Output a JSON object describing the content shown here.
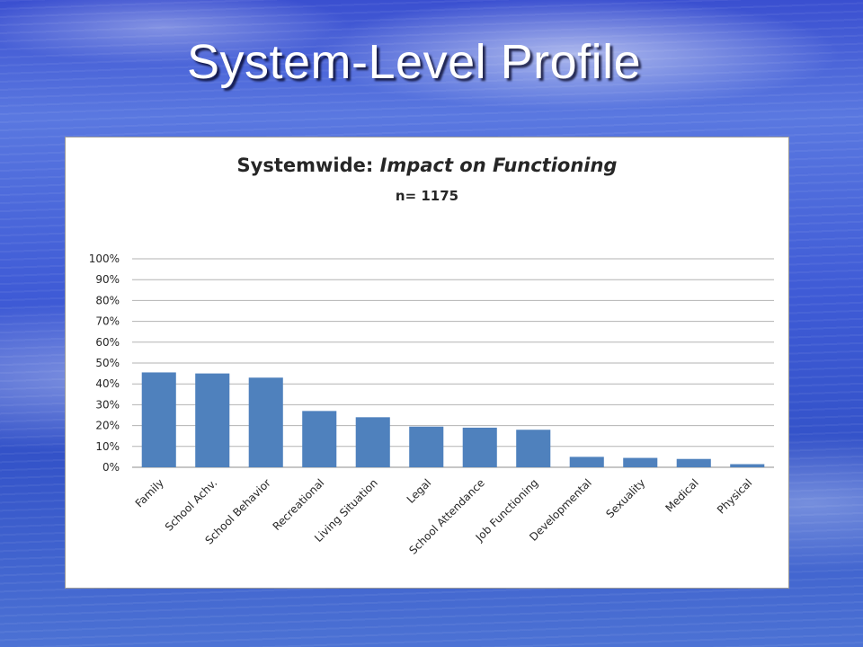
{
  "slide": {
    "title": "System-Level Profile"
  },
  "colors": {
    "bar": "#4f81bd",
    "title_text": "#ffffff"
  },
  "chart_data": {
    "type": "bar",
    "title_prefix": "Systemwide: ",
    "title_emphasis": "Impact on Functioning",
    "subtitle": "n= 1175",
    "categories": [
      "Family",
      "School Achv.",
      "School Behavior",
      "Recreational",
      "Living Situation",
      "Legal",
      "School Attendance",
      "Job Functioning",
      "Developmental",
      "Sexuality",
      "Medical",
      "Physical"
    ],
    "values": [
      45.5,
      45,
      43,
      27,
      24,
      19.5,
      19,
      18,
      5,
      4.5,
      4,
      1.5
    ],
    "value_unit": "%",
    "ylim": [
      0,
      100
    ],
    "yticks": [
      "0%",
      "10%",
      "20%",
      "30%",
      "40%",
      "50%",
      "60%",
      "70%",
      "80%",
      "90%",
      "100%"
    ],
    "xlabel": "",
    "ylabel": "",
    "grid": true,
    "legend": "none"
  }
}
